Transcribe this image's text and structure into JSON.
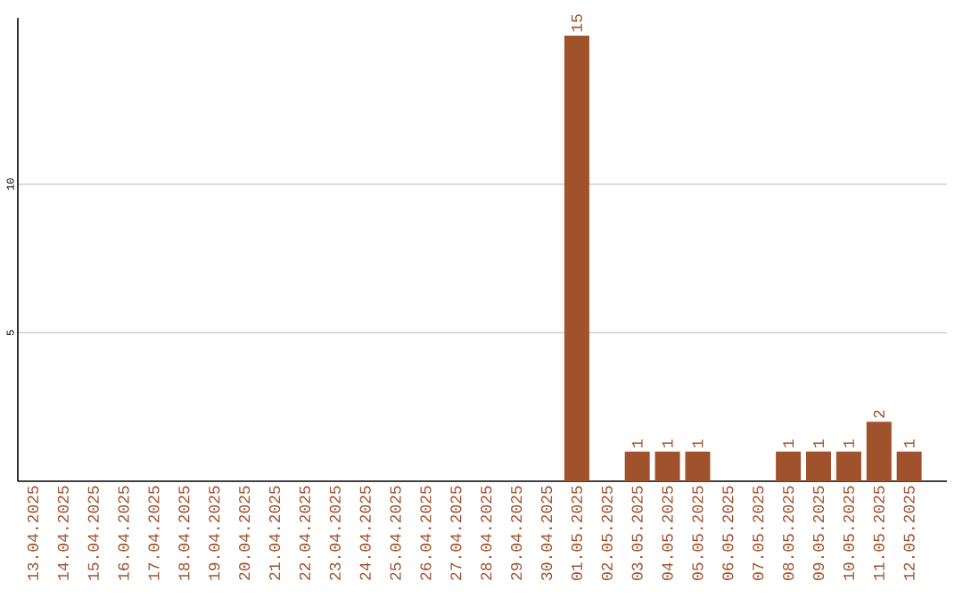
{
  "chart_data": {
    "type": "bar",
    "categories": [
      "13.04.2025",
      "14.04.2025",
      "15.04.2025",
      "16.04.2025",
      "17.04.2025",
      "18.04.2025",
      "19.04.2025",
      "20.04.2025",
      "21.04.2025",
      "22.04.2025",
      "23.04.2025",
      "24.04.2025",
      "25.04.2025",
      "26.04.2025",
      "27.04.2025",
      "28.04.2025",
      "29.04.2025",
      "30.04.2025",
      "01.05.2025",
      "02.05.2025",
      "03.05.2025",
      "04.05.2025",
      "05.05.2025",
      "06.05.2025",
      "07.05.2025",
      "08.05.2025",
      "09.05.2025",
      "10.05.2025",
      "11.05.2025",
      "12.05.2025"
    ],
    "values": [
      0,
      0,
      0,
      0,
      0,
      0,
      0,
      0,
      0,
      0,
      0,
      0,
      0,
      0,
      0,
      0,
      0,
      0,
      15,
      0,
      1,
      1,
      1,
      0,
      0,
      1,
      1,
      1,
      2,
      1
    ],
    "value_labels": [
      null,
      null,
      null,
      null,
      null,
      null,
      null,
      null,
      null,
      null,
      null,
      null,
      null,
      null,
      null,
      null,
      null,
      null,
      "15",
      null,
      "1",
      "1",
      "1",
      null,
      null,
      "1",
      "1",
      "1",
      "2",
      "1"
    ],
    "color": "#a0522d",
    "ylim": [
      0,
      15.6
    ],
    "yticks": [
      5,
      10
    ],
    "grid": "y"
  }
}
